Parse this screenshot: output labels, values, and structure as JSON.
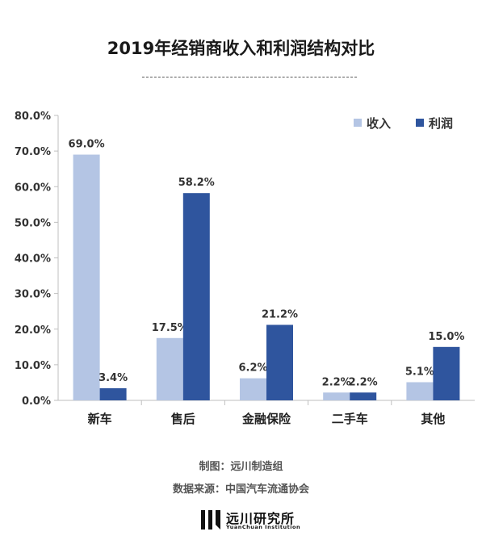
{
  "header": {
    "title": "2019年经销商收入和利润结构对比"
  },
  "colors": {
    "income": "#b4c5e4",
    "profit": "#2f559e",
    "axis": "#bfbfbf"
  },
  "chart_data": {
    "type": "bar",
    "title": "2019年经销商收入和利润结构对比",
    "xlabel": "",
    "ylabel": "",
    "categories": [
      "新车",
      "售后",
      "金融保险",
      "二手车",
      "其他"
    ],
    "series": [
      {
        "name": "收入",
        "values": [
          69.0,
          17.5,
          6.2,
          2.2,
          5.1
        ],
        "labels": [
          "69.0%",
          "17.5%",
          "6.2%",
          "2.2%",
          "5.1%"
        ]
      },
      {
        "name": "利润",
        "values": [
          3.4,
          58.2,
          21.2,
          2.2,
          15.0
        ],
        "labels": [
          "3.4%",
          "58.2%",
          "21.2%",
          "2.2%",
          "15.0%"
        ]
      }
    ],
    "ylim": [
      0,
      80
    ],
    "yticks": [
      0,
      10,
      20,
      30,
      40,
      50,
      60,
      70,
      80
    ],
    "ytick_labels": [
      "0.0%",
      "10.0%",
      "20.0%",
      "30.0%",
      "40.0%",
      "50.0%",
      "60.0%",
      "70.0%",
      "80.0%"
    ],
    "grid": false,
    "legend": "top-right"
  },
  "footer": {
    "made_by": "制图：远川制造组",
    "source": "数据来源：中国汽车流通协会",
    "brand_name": "远川研究所",
    "brand_sub": "YuanChuan Institution"
  }
}
